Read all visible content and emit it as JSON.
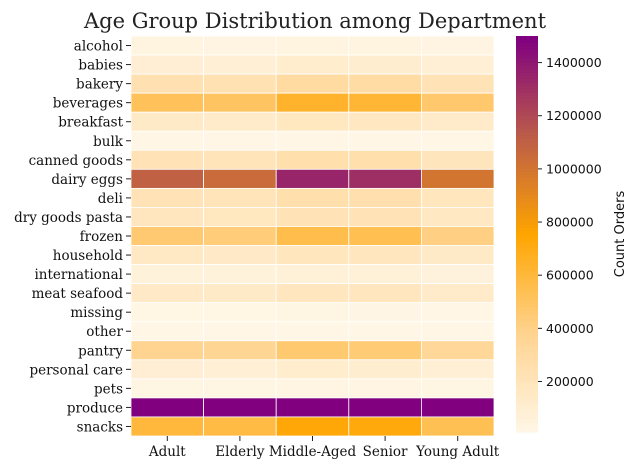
{
  "chart_data": {
    "type": "heatmap",
    "title": "Age Group Distribution among Department",
    "xlabel": "",
    "ylabel": "",
    "x_categories": [
      "Adult",
      "Elderly",
      "Middle-Aged",
      "Senior",
      "Young Adult"
    ],
    "y_categories": [
      "alcohol",
      "babies",
      "bakery",
      "beverages",
      "breakfast",
      "bulk",
      "canned goods",
      "dairy eggs",
      "deli",
      "dry goods pasta",
      "frozen",
      "household",
      "international",
      "meat seafood",
      "missing",
      "other",
      "pantry",
      "personal care",
      "pets",
      "produce",
      "snacks"
    ],
    "values": [
      [
        30000,
        28000,
        36000,
        34000,
        27000
      ],
      [
        90000,
        85000,
        110000,
        105000,
        80000
      ],
      [
        240000,
        230000,
        300000,
        290000,
        215000
      ],
      [
        520000,
        500000,
        640000,
        620000,
        470000
      ],
      [
        140000,
        130000,
        170000,
        165000,
        125000
      ],
      [
        7000,
        7000,
        9000,
        8000,
        6000
      ],
      [
        210000,
        200000,
        260000,
        255000,
        190000
      ],
      [
        1100000,
        1050000,
        1350000,
        1310000,
        1000000
      ],
      [
        210000,
        200000,
        255000,
        250000,
        185000
      ],
      [
        180000,
        170000,
        220000,
        215000,
        160000
      ],
      [
        460000,
        440000,
        560000,
        545000,
        410000
      ],
      [
        150000,
        145000,
        185000,
        180000,
        135000
      ],
      [
        55000,
        52000,
        67000,
        65000,
        50000
      ],
      [
        145000,
        140000,
        180000,
        175000,
        130000
      ],
      [
        14000,
        14000,
        17000,
        16000,
        12000
      ],
      [
        7000,
        6500,
        8500,
        8000,
        6000
      ],
      [
        380000,
        360000,
        465000,
        450000,
        340000
      ],
      [
        90000,
        85000,
        110000,
        105000,
        80000
      ],
      [
        20000,
        19000,
        24000,
        23000,
        17000
      ],
      [
        1900000,
        1800000,
        2300000,
        2250000,
        1700000
      ],
      [
        600000,
        580000,
        740000,
        720000,
        540000
      ]
    ],
    "colorbar": {
      "label": "Count Orders",
      "range": [
        10000,
        1500000
      ],
      "ticks": [
        200000,
        400000,
        600000,
        800000,
        1000000,
        1200000,
        1400000
      ],
      "tick_labels": [
        "200000",
        "400000",
        "600000",
        "800000",
        "1000000",
        "1200000",
        "1400000"
      ],
      "colormap": [
        "#fff6e5",
        "#ffd38f",
        "#ffa500",
        "#bb5c49",
        "#800080"
      ]
    },
    "grid": true,
    "cell_line_color": "#ffffff"
  }
}
